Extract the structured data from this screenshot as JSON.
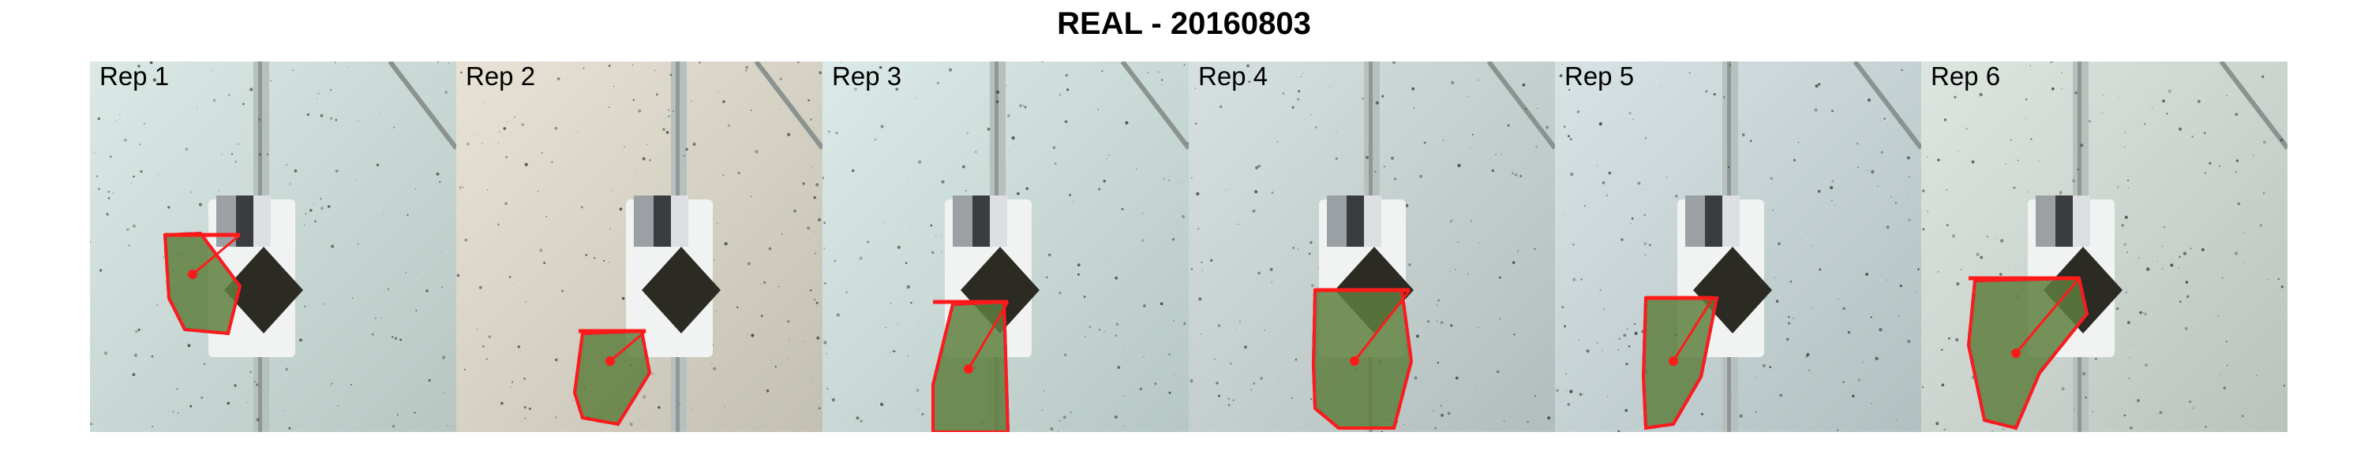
{
  "title": "REAL - 20160803",
  "panels": [
    {
      "label": "Rep 1",
      "tint": "#cfe2de"
    },
    {
      "label": "Rep 2",
      "tint": "#e0d9c8"
    },
    {
      "label": "Rep 3",
      "tint": "#cfe3e0"
    },
    {
      "label": "Rep 4",
      "tint": "#c9d6d6"
    },
    {
      "label": "Rep 5",
      "tint": "#cad9dc"
    },
    {
      "label": "Rep 6",
      "tint": "#d3ddd6"
    }
  ],
  "colors": {
    "hull": "#ff1a1a",
    "contour": "#1a1aff",
    "foliage": "#5e7f3e"
  }
}
